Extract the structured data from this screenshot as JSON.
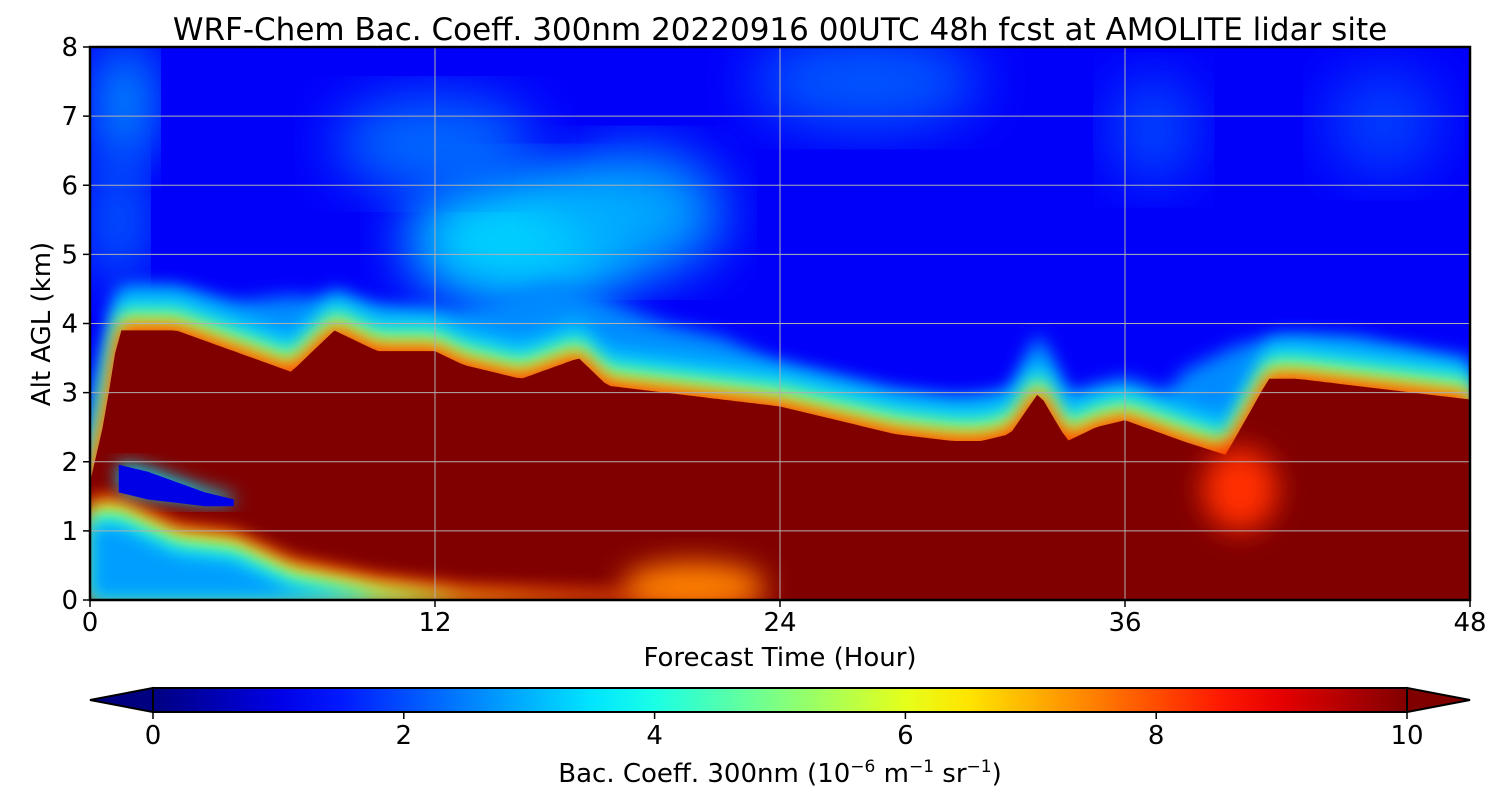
{
  "chart_data": {
    "type": "heatmap",
    "title": "WRF-Chem Bac. Coeff. 300nm  20220916 00UTC 48h fcst at AMOLITE lidar site",
    "xlabel": "Forecast Time (Hour)",
    "ylabel": "Alt AGL (km)",
    "xlim": [
      0,
      48
    ],
    "ylim": [
      0,
      8
    ],
    "xticks": [
      "0",
      "12",
      "24",
      "36",
      "48"
    ],
    "yticks": [
      "0",
      "1",
      "2",
      "3",
      "4",
      "5",
      "6",
      "7",
      "8"
    ],
    "grid": true,
    "colormap": "jet",
    "colorbar": {
      "label_prefix": "Bac. Coeff. 300nm  (10",
      "label_exp1": "−6",
      "label_mid1": " m",
      "label_exp2": "−1",
      "label_mid2": " sr",
      "label_exp3": "−1",
      "label_suffix": ")",
      "range": [
        0,
        10
      ],
      "ticks": [
        "0",
        "2",
        "4",
        "6",
        "8",
        "10"
      ],
      "extend": "both",
      "orientation": "horizontal",
      "placement": "bottom"
    },
    "layers": {
      "background_value": 1.2,
      "saturated_value": 10,
      "aerosol_top_km": {
        "hours": [
          0,
          0.5,
          1,
          3,
          5,
          7,
          8.5,
          10,
          12,
          13,
          15,
          17,
          18,
          20,
          22,
          24,
          26,
          28,
          30,
          31,
          32,
          33,
          34,
          35,
          36,
          38,
          39.5,
          41,
          42,
          44,
          46,
          48
        ],
        "km": [
          1.7,
          2.6,
          3.9,
          3.9,
          3.6,
          3.3,
          3.9,
          3.6,
          3.6,
          3.4,
          3.2,
          3.5,
          3.1,
          3.0,
          2.9,
          2.8,
          2.6,
          2.4,
          2.3,
          2.3,
          2.4,
          3.0,
          2.3,
          2.5,
          2.6,
          2.3,
          2.1,
          3.2,
          3.2,
          3.1,
          3.0,
          2.9
        ]
      },
      "plume_top_km": {
        "hours": [
          0,
          1,
          3,
          5,
          7,
          9,
          12,
          14,
          16,
          18,
          20,
          22,
          24,
          26,
          28,
          30,
          32,
          33,
          34,
          36,
          37,
          38,
          40,
          42,
          44,
          46,
          48
        ],
        "km": [
          3.0,
          4.5,
          4.5,
          4.3,
          4.4,
          4.3,
          4.1,
          4.3,
          4.6,
          4.3,
          4.0,
          3.8,
          3.4,
          3.2,
          3.0,
          2.9,
          3.0,
          3.9,
          3.0,
          2.9,
          2.7,
          3.3,
          3.7,
          3.8,
          3.8,
          3.6,
          3.3
        ]
      },
      "clean_pocket_km": {
        "hours": [
          1,
          2,
          3,
          4,
          5
        ],
        "top": [
          2.0,
          1.9,
          1.75,
          1.6,
          1.5
        ],
        "bottom": [
          1.6,
          1.5,
          1.45,
          1.4,
          1.4
        ]
      },
      "near_surface_reduced": {
        "hours": [
          0,
          1,
          2,
          3,
          5,
          7,
          10,
          13,
          16,
          20,
          23,
          24
        ],
        "km": [
          1.5,
          1.5,
          1.3,
          1.1,
          1.0,
          0.6,
          0.35,
          0.2,
          0.15,
          0.1,
          0.05,
          0.0
        ]
      },
      "upper_features": [
        {
          "hour": 1.2,
          "km": 7.2,
          "rx": 0.9,
          "ry": 0.9,
          "value": 3.2
        },
        {
          "hour": 1.0,
          "km": 5.5,
          "rx": 0.8,
          "ry": 1.0,
          "value": 2.6
        },
        {
          "hour": 15,
          "km": 5.2,
          "rx": 4.0,
          "ry": 1.0,
          "value": 3.5
        },
        {
          "hour": 12,
          "km": 6.6,
          "rx": 3.5,
          "ry": 0.7,
          "value": 2.4
        },
        {
          "hour": 19,
          "km": 5.6,
          "rx": 3.0,
          "ry": 0.9,
          "value": 3.0
        },
        {
          "hour": 27,
          "km": 7.5,
          "rx": 4.0,
          "ry": 0.7,
          "value": 2.2
        },
        {
          "hour": 37,
          "km": 6.8,
          "rx": 1.5,
          "ry": 0.8,
          "value": 2.0
        },
        {
          "hour": 45,
          "km": 6.9,
          "rx": 2.0,
          "ry": 0.8,
          "value": 1.9
        },
        {
          "hour": 40,
          "km": 1.6,
          "rx": 1.3,
          "ry": 0.6,
          "value": 8.3
        },
        {
          "hour": 21,
          "km": 0.2,
          "rx": 2.5,
          "ry": 0.35,
          "value": 7.5
        }
      ]
    }
  }
}
